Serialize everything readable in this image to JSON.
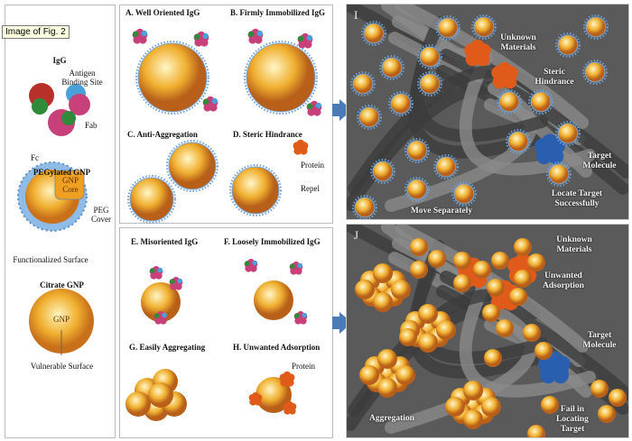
{
  "tooltip": "Image of Fig. 2",
  "left": {
    "igg_title": "IgG",
    "antigen": "Antigen Binding Site",
    "fab": "Fab",
    "fc": "Fc",
    "peg_title": "PEGylated GNP",
    "gnp_core": "GNP Core",
    "peg_cover": "PEG Cover",
    "functionalized": "Functionalized Surface",
    "citrate_title": "Citrate GNP",
    "gnp": "GNP",
    "vulnerable": "Vulnerable Surface"
  },
  "middle_top": {
    "a": "A. Well Oriented IgG",
    "b": "B. Firmly Immobilized IgG",
    "c": "C. Anti-Aggregation",
    "d": "D. Steric Hindrance",
    "protein": "Protein",
    "repel": "Repel"
  },
  "middle_bottom": {
    "e": "E. Misoriented IgG",
    "f": "F. Loosely Immobilized IgG",
    "g": "G. Easily Aggregating",
    "h": "H. Unwanted Adsorption",
    "protein": "Protein"
  },
  "panel_i": {
    "label": "I",
    "unknown": "Unknown Materials",
    "steric": "Steric Hindrance",
    "target": "Target Molecule",
    "locate": "Locate Target Successfully",
    "move": "Move Separately"
  },
  "panel_j": {
    "label": "J",
    "unknown": "Unknown Materials",
    "unwanted": "Unwanted Adsorption",
    "target": "Target Molecule",
    "fail": "Fail in Locating Target",
    "aggregation": "Aggregation"
  },
  "colors": {
    "gold": "#f0b030",
    "peg_blue": "#6aa0d8",
    "antibody_blue": "#2a5fb0",
    "protein_orange": "#e05a1a",
    "fab_magenta": "#c8407a",
    "arrow": "#4a7bb7"
  }
}
